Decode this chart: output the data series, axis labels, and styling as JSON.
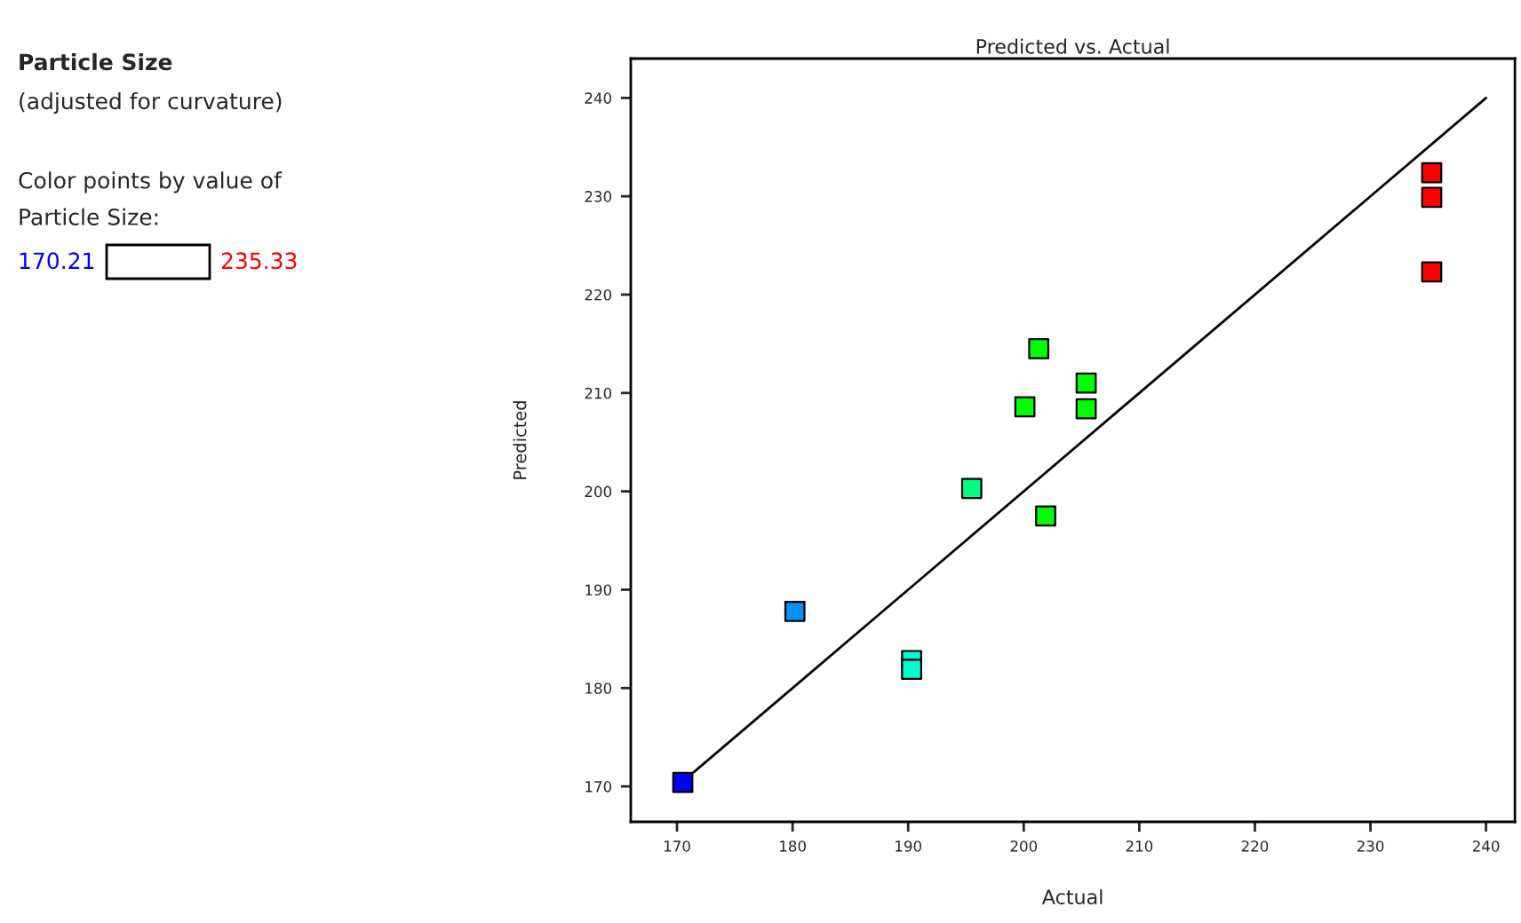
{
  "chart_data": {
    "type": "scatter",
    "title": "Predicted vs. Actual",
    "xlabel": "Actual",
    "ylabel": "Predicted",
    "annotations": [
      "Particle Size",
      "(adjusted for curvature)",
      "Color points by value of\nParticle Size:",
      "170.21",
      "235.33"
    ],
    "series": [
      {
        "marker": "square",
        "x": [
          170.5,
          180.2,
          190.3,
          190.3,
          195.5,
          201.9,
          200.1,
          201.3,
          205.4,
          205.4,
          235.3,
          235.3,
          235.3
        ],
        "values": [
          170.4,
          187.8,
          182.8,
          181.9,
          200.3,
          197.5,
          208.6,
          214.5,
          211.0,
          208.4,
          232.4,
          229.9,
          222.3
        ],
        "colors": [
          "#0000ff",
          "#0090ff",
          "#00ffd0",
          "#00ffd0",
          "#00ff80",
          "#00ff00",
          "#00ff00",
          "#00ff00",
          "#00ff00",
          "#00ff00",
          "#ff0000",
          "#ff0000",
          "#ff0000"
        ]
      },
      {
        "type": "line",
        "marker": "none",
        "x": [
          170,
          240
        ],
        "values": [
          170,
          240
        ],
        "color": "#000000"
      }
    ],
    "xlim": [
      166,
      242.5
    ],
    "ylim": [
      166.4,
      244
    ],
    "xticks": [
      170,
      180,
      190,
      200,
      210,
      220,
      230,
      240
    ],
    "yticks": [
      170,
      180,
      190,
      200,
      210,
      220,
      230,
      240
    ],
    "grid": false,
    "legend": false
  }
}
